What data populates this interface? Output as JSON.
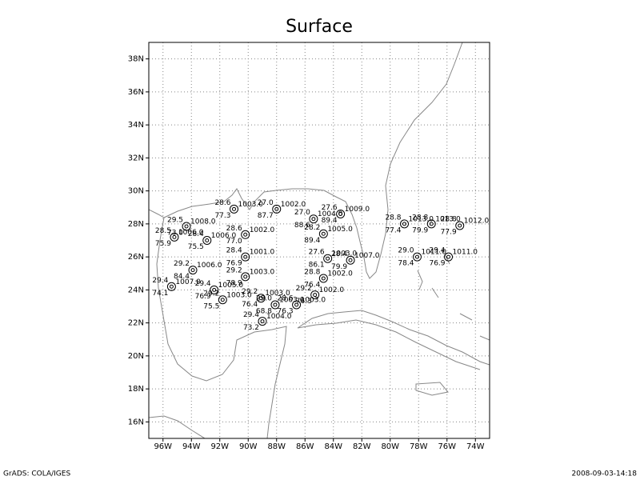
{
  "map": {
    "title": "Surface",
    "xlim": [
      -97,
      -73
    ],
    "ylim": [
      15,
      39
    ],
    "grid": true,
    "xticks": [
      {
        "value": -96,
        "label": "96W"
      },
      {
        "value": -94,
        "label": "94W"
      },
      {
        "value": -92,
        "label": "92W"
      },
      {
        "value": -90,
        "label": "90W"
      },
      {
        "value": -88,
        "label": "88W"
      },
      {
        "value": -86,
        "label": "86W"
      },
      {
        "value": -84,
        "label": "84W"
      },
      {
        "value": -82,
        "label": "82W"
      },
      {
        "value": -80,
        "label": "80W"
      },
      {
        "value": -78,
        "label": "78W"
      },
      {
        "value": -76,
        "label": "76W"
      },
      {
        "value": -74,
        "label": "74W"
      }
    ],
    "yticks": [
      {
        "value": 16,
        "label": "16N"
      },
      {
        "value": 18,
        "label": "18N"
      },
      {
        "value": 20,
        "label": "20N"
      },
      {
        "value": 22,
        "label": "22N"
      },
      {
        "value": 24,
        "label": "24N"
      },
      {
        "value": 26,
        "label": "26N"
      },
      {
        "value": 28,
        "label": "28N"
      },
      {
        "value": 30,
        "label": "30N"
      },
      {
        "value": 32,
        "label": "32N"
      },
      {
        "value": 34,
        "label": "34N"
      },
      {
        "value": 36,
        "label": "36N"
      },
      {
        "value": 38,
        "label": "38N"
      }
    ],
    "stations": [
      {
        "lon": -94.35,
        "lat": 27.85,
        "t": "29.5",
        "d": "73.0",
        "p": "1008.0"
      },
      {
        "lon": -95.2,
        "lat": 27.2,
        "t": "28.5",
        "d": "75.9",
        "p": "1006.0"
      },
      {
        "lon": -92.9,
        "lat": 27.0,
        "t": "28.4",
        "d": "75.5",
        "p": "1006.0"
      },
      {
        "lon": -90.2,
        "lat": 27.35,
        "t": "28.6",
        "d": "77.0",
        "p": "1002.0"
      },
      {
        "lon": -91.0,
        "lat": 28.9,
        "t": "28.6",
        "d": "77.3",
        "p": "1003.0"
      },
      {
        "lon": -88.0,
        "lat": 28.9,
        "t": "27.0",
        "d": "87.7",
        "p": "1002.0"
      },
      {
        "lon": -85.4,
        "lat": 28.3,
        "t": "27.0",
        "d": "88.6",
        "p": "1004.0"
      },
      {
        "lon": -83.5,
        "lat": 28.6,
        "t": "27.6",
        "d": "89.4",
        "p": "1009.0"
      },
      {
        "lon": -84.7,
        "lat": 27.4,
        "t": "28.2",
        "d": "89.4",
        "p": "1005.0"
      },
      {
        "lon": -84.4,
        "lat": 25.9,
        "t": "27.6",
        "d": "86.1",
        "p": "1003.0"
      },
      {
        "lon": -82.8,
        "lat": 25.8,
        "t": "28.4",
        "d": "79.9",
        "p": "1007.0"
      },
      {
        "lon": -84.7,
        "lat": 24.7,
        "t": "28.8",
        "d": "76.4",
        "p": "1002.0"
      },
      {
        "lon": -85.3,
        "lat": 23.7,
        "t": "29.2",
        "d": "76.3",
        "p": "1002.0"
      },
      {
        "lon": -86.6,
        "lat": 23.1,
        "t": "28.6",
        "d": "76.3",
        "p": "1003.0"
      },
      {
        "lon": -89.0,
        "lat": 22.1,
        "t": "29.4",
        "d": "73.2",
        "p": "1004.0"
      },
      {
        "lon": -90.2,
        "lat": 26.0,
        "t": "28.4",
        "d": "76.9",
        "p": "1001.0"
      },
      {
        "lon": -90.2,
        "lat": 24.8,
        "t": "29.2",
        "d": "78.9",
        "p": "1003.0"
      },
      {
        "lon": -93.9,
        "lat": 25.2,
        "t": "29.2",
        "d": "84.4",
        "p": "1006.0"
      },
      {
        "lon": -95.4,
        "lat": 24.2,
        "t": "29.4",
        "d": "74.1",
        "p": "1007.0"
      },
      {
        "lon": -92.4,
        "lat": 24.0,
        "t": "29.4",
        "d": "76.9",
        "p": "1005.0"
      },
      {
        "lon": -91.8,
        "lat": 23.4,
        "t": "29.2",
        "d": "75.5",
        "p": "1003.0"
      },
      {
        "lon": -89.1,
        "lat": 23.5,
        "t": "29.2",
        "d": "76.4",
        "p": "1003.0"
      },
      {
        "lon": -88.1,
        "lat": 23.1,
        "t": "29.0",
        "d": "68.8",
        "p": "1003.0"
      },
      {
        "lon": -79.0,
        "lat": 28.0,
        "t": "28.8",
        "d": "77.4",
        "p": "1013.0"
      },
      {
        "lon": -77.1,
        "lat": 28.0,
        "t": "28.8",
        "d": "79.9",
        "p": "1013.0"
      },
      {
        "lon": -75.1,
        "lat": 27.9,
        "t": "28.8",
        "d": "77.9",
        "p": "1012.0"
      },
      {
        "lon": -78.1,
        "lat": 26.0,
        "t": "29.0",
        "d": "78.4",
        "p": "1011.0"
      },
      {
        "lon": -75.9,
        "lat": 26.0,
        "t": "29.4",
        "d": "76.9",
        "p": "1011.0"
      }
    ]
  },
  "footer": {
    "left": "GrADS: COLA/IGES",
    "right": "2008-09-03-14:18"
  }
}
